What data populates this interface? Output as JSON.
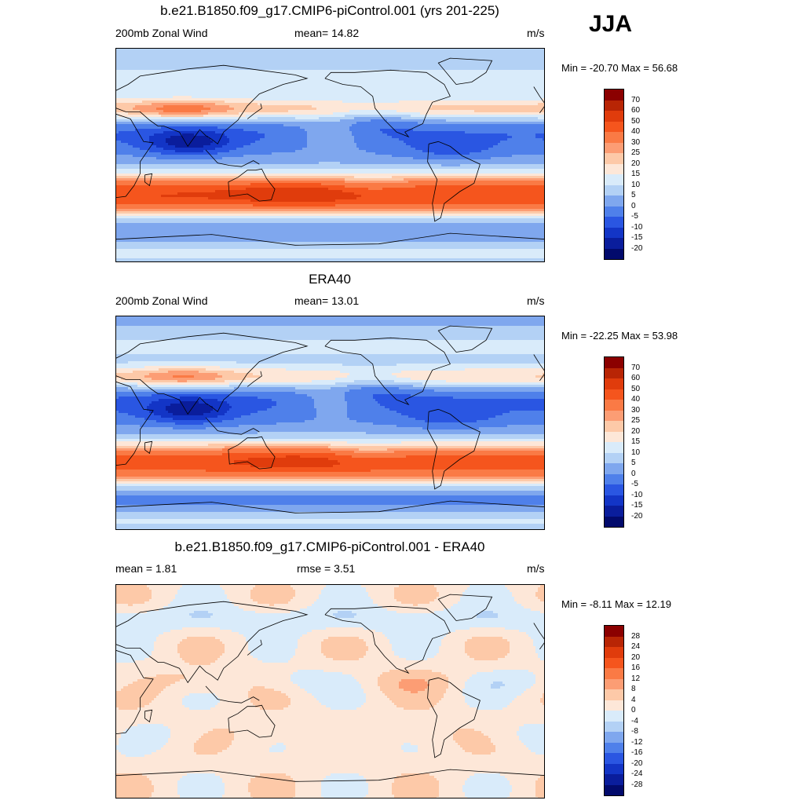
{
  "season": "JJA",
  "panels": [
    {
      "title": "b.e21.B1850.f09_g17.CMIP6-piControl.001 (yrs 201-225)",
      "left_label": "200mb Zonal Wind",
      "center_label": "mean=  14.82",
      "units": "m/s",
      "minmax": "Min = -20.70 Max =  56.68",
      "colorbar": {
        "labels": [
          "70",
          "60",
          "50",
          "40",
          "30",
          "25",
          "20",
          "15",
          "10",
          "5",
          "0",
          "-5",
          "-10",
          "-15",
          "-20"
        ],
        "colors": [
          "#8b0000",
          "#b82505",
          "#e03c0c",
          "#f5551d",
          "#fa7a45",
          "#fc9d74",
          "#fdc9a8",
          "#fde7d8",
          "#d9ebfa",
          "#b3d1f5",
          "#7fa7ee",
          "#4f80ea",
          "#2a56e2",
          "#1335c6",
          "#0a1d9c",
          "#020a6c"
        ]
      },
      "field": "model"
    },
    {
      "title": "ERA40",
      "left_label": "200mb Zonal Wind",
      "center_label": "mean=  13.01",
      "units": "m/s",
      "minmax": "Min = -22.25 Max =  53.98",
      "colorbar": {
        "labels": [
          "70",
          "60",
          "50",
          "40",
          "30",
          "25",
          "20",
          "15",
          "10",
          "5",
          "0",
          "-5",
          "-10",
          "-15",
          "-20"
        ],
        "colors": [
          "#8b0000",
          "#b82505",
          "#e03c0c",
          "#f5551d",
          "#fa7a45",
          "#fc9d74",
          "#fdc9a8",
          "#fde7d8",
          "#d9ebfa",
          "#b3d1f5",
          "#7fa7ee",
          "#4f80ea",
          "#2a56e2",
          "#1335c6",
          "#0a1d9c",
          "#020a6c"
        ]
      },
      "field": "obs"
    },
    {
      "title": "b.e21.B1850.f09_g17.CMIP6-piControl.001 - ERA40",
      "left_label": "mean =   1.81",
      "center_label": "rmse =   3.51",
      "units": "m/s",
      "minmax": "Min =  -8.11 Max =  12.19",
      "colorbar": {
        "labels": [
          "28",
          "24",
          "20",
          "16",
          "12",
          "8",
          "4",
          "0",
          "-4",
          "-8",
          "-12",
          "-16",
          "-20",
          "-24",
          "-28"
        ],
        "colors": [
          "#8b0000",
          "#b82505",
          "#e03c0c",
          "#f5551d",
          "#fa7a45",
          "#fc9d74",
          "#fdc9a8",
          "#fde7d8",
          "#d9ebfa",
          "#b3d1f5",
          "#7fa7ee",
          "#4f80ea",
          "#2a56e2",
          "#1335c6",
          "#0a1d9c",
          "#020a6c"
        ]
      },
      "field": "diff"
    }
  ]
}
